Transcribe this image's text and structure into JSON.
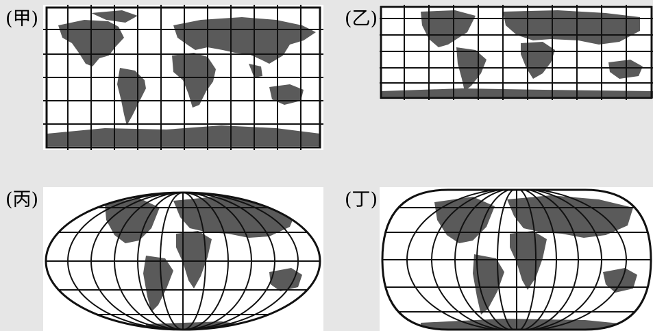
{
  "maps": [
    {
      "id": "jia",
      "label": "(甲)",
      "projection": "rectangular-grid-full"
    },
    {
      "id": "yi",
      "label": "(乙)",
      "projection": "rectangular-grid-compressed"
    },
    {
      "id": "bing",
      "label": "(丙)",
      "projection": "elliptical"
    },
    {
      "id": "ding",
      "label": "(丁)",
      "projection": "rounded-oval"
    }
  ],
  "colors": {
    "background": "#e6e6e6",
    "land": "#5a5a5a",
    "ocean": "#ffffff",
    "grid": "#111111"
  }
}
